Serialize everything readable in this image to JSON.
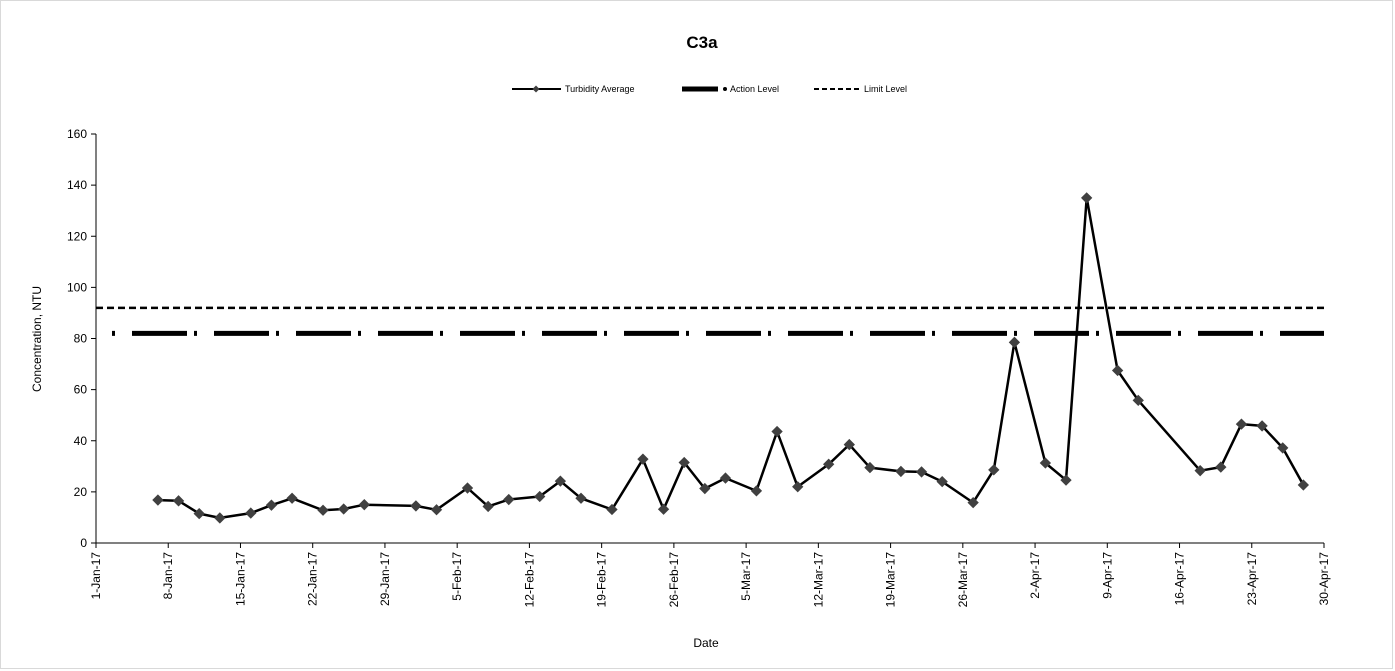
{
  "chart_data": {
    "type": "line",
    "title": "C3a",
    "xlabel": "Date",
    "ylabel": "Concentration, NTU",
    "ylim": [
      0,
      160
    ],
    "yticks": [
      0,
      20,
      40,
      60,
      80,
      100,
      120,
      140,
      160
    ],
    "xlim": [
      "2017-01-01",
      "2017-04-30"
    ],
    "xtick_labels": [
      "1-Jan-17",
      "8-Jan-17",
      "15-Jan-17",
      "22-Jan-17",
      "29-Jan-17",
      "5-Feb-17",
      "12-Feb-17",
      "19-Feb-17",
      "26-Feb-17",
      "5-Mar-17",
      "12-Mar-17",
      "19-Mar-17",
      "26-Mar-17",
      "2-Apr-17",
      "9-Apr-17",
      "16-Apr-17",
      "23-Apr-17",
      "30-Apr-17"
    ],
    "grid": false,
    "legend_position": "top-center",
    "series": [
      {
        "name": "Turbidity Average",
        "style": "solid line with diamond markers",
        "color": "#000000",
        "marker_color": "#404040",
        "x": [
          "2017-01-07",
          "2017-01-09",
          "2017-01-11",
          "2017-01-13",
          "2017-01-16",
          "2017-01-18",
          "2017-01-20",
          "2017-01-23",
          "2017-01-25",
          "2017-01-27",
          "2017-02-01",
          "2017-02-03",
          "2017-02-06",
          "2017-02-08",
          "2017-02-10",
          "2017-02-13",
          "2017-02-15",
          "2017-02-17",
          "2017-02-20",
          "2017-02-23",
          "2017-02-25",
          "2017-02-27",
          "2017-03-01",
          "2017-03-03",
          "2017-03-06",
          "2017-03-08",
          "2017-03-10",
          "2017-03-13",
          "2017-03-15",
          "2017-03-17",
          "2017-03-20",
          "2017-03-22",
          "2017-03-24",
          "2017-03-27",
          "2017-03-29",
          "2017-03-31",
          "2017-04-03",
          "2017-04-05",
          "2017-04-07",
          "2017-04-10",
          "2017-04-12",
          "2017-04-18",
          "2017-04-20",
          "2017-04-22",
          "2017-04-24",
          "2017-04-26",
          "2017-04-28"
        ],
        "values": [
          16.8,
          16.5,
          11.5,
          9.8,
          11.7,
          14.8,
          17.5,
          12.8,
          13.3,
          15.0,
          14.5,
          13.0,
          21.5,
          14.3,
          17.0,
          18.2,
          24.2,
          17.5,
          13.1,
          32.8,
          13.2,
          31.5,
          21.3,
          25.4,
          20.4,
          43.6,
          22.0,
          30.8,
          38.5,
          29.5,
          28.0,
          27.8,
          24.0,
          15.8,
          28.6,
          78.5,
          31.3,
          24.6,
          135.0,
          67.5,
          55.8,
          28.3,
          29.7,
          46.5,
          45.8,
          37.2,
          22.7
        ]
      },
      {
        "name": "Action Level",
        "style": "long dash-dot",
        "color": "#000000",
        "value": 82
      },
      {
        "name": "Limit Level",
        "style": "short dash",
        "color": "#000000",
        "value": 92
      }
    ]
  }
}
